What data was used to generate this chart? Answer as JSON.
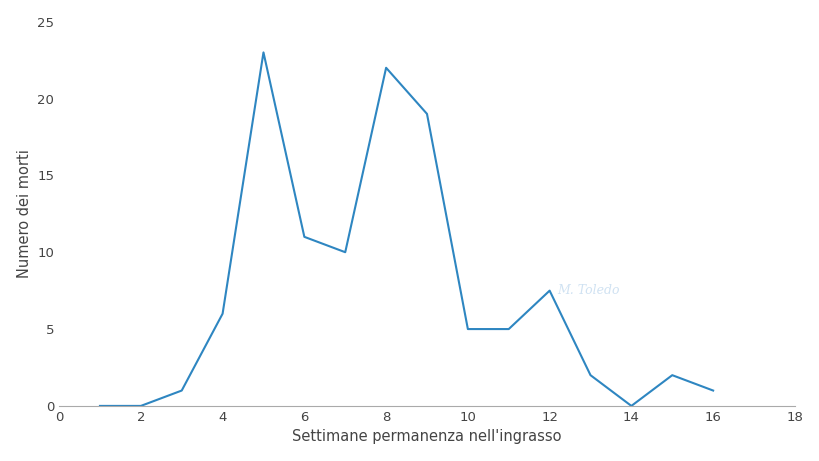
{
  "x": [
    1,
    2,
    3,
    4,
    5,
    6,
    7,
    8,
    9,
    10,
    11,
    12,
    13,
    14,
    15,
    16
  ],
  "y": [
    0,
    0,
    1,
    6,
    23,
    11,
    10,
    22,
    19,
    5,
    5,
    7.5,
    2,
    0,
    2,
    1
  ],
  "line_color": "#2e86c1",
  "xlabel": "Settimane permanenza nell'ingrasso",
  "ylabel": "Numero dei morti",
  "xlim": [
    0,
    18
  ],
  "ylim": [
    0,
    25
  ],
  "xticks": [
    0,
    2,
    4,
    6,
    8,
    10,
    12,
    14,
    16,
    18
  ],
  "yticks": [
    0,
    5,
    10,
    15,
    20,
    25
  ],
  "background_color": "#ffffff",
  "line_width": 1.5,
  "xlabel_fontsize": 10.5,
  "ylabel_fontsize": 10.5,
  "tick_fontsize": 9.5
}
